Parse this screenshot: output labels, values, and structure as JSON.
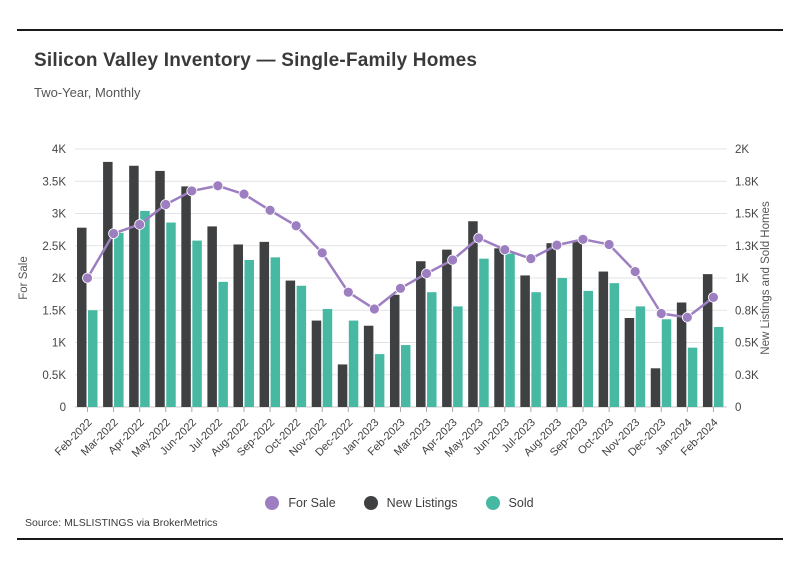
{
  "header": {
    "title": "Silicon Valley Inventory — Single-Family Homes",
    "subtitle": "Two-Year, Monthly"
  },
  "chart_data": {
    "type": "bar",
    "subtype": "grouped bars with overlaid line (dual axis)",
    "title": "Silicon Valley Inventory — Single-Family Homes",
    "subtitle": "Two-Year, Monthly",
    "categories": [
      "Feb-2022",
      "Mar-2022",
      "Apr-2022",
      "May-2022",
      "Jun-2022",
      "Jul-2022",
      "Aug-2022",
      "Sep-2022",
      "Oct-2022",
      "Nov-2022",
      "Dec-2022",
      "Jan-2023",
      "Feb-2023",
      "Mar-2023",
      "Apr-2023",
      "May-2023",
      "Jun-2023",
      "Jul-2023",
      "Aug-2023",
      "Sep-2023",
      "Oct-2023",
      "Nov-2023",
      "Dec-2023",
      "Jan-2024",
      "Feb-2024"
    ],
    "series": [
      {
        "name": "For Sale",
        "type": "line",
        "axis": "left",
        "color": "#9d7fc1",
        "values": [
          2000,
          2690,
          2830,
          3140,
          3350,
          3430,
          3300,
          3050,
          2810,
          2390,
          1780,
          1520,
          1840,
          2070,
          2280,
          2620,
          2440,
          2300,
          2510,
          2600,
          2520,
          2100,
          1450,
          1390,
          1700
        ]
      },
      {
        "name": "New Listings",
        "type": "bar",
        "axis": "right",
        "color": "#3e4042",
        "values": [
          1390,
          1900,
          1870,
          1830,
          1710,
          1400,
          1260,
          1280,
          980,
          670,
          330,
          630,
          870,
          1130,
          1220,
          1440,
          1230,
          1020,
          1270,
          1290,
          1050,
          690,
          300,
          810,
          1030
        ]
      },
      {
        "name": "Sold",
        "type": "bar",
        "axis": "right",
        "color": "#47b9a3",
        "values": [
          750,
          1350,
          1520,
          1430,
          1290,
          970,
          1140,
          1160,
          940,
          760,
          670,
          410,
          480,
          890,
          780,
          1150,
          1190,
          890,
          1000,
          900,
          960,
          780,
          680,
          460,
          620
        ]
      }
    ],
    "left_axis": {
      "title": "For Sale",
      "min": 0,
      "max": 4000,
      "tick_labels": [
        "0",
        "0.5K",
        "1K",
        "1.5K",
        "2K",
        "2.5K",
        "3K",
        "3.5K",
        "4K"
      ]
    },
    "right_axis": {
      "title": "New Listings and Sold Homes",
      "min": 0,
      "max": 2000,
      "tick_labels": [
        "0",
        "0.3K",
        "0.5K",
        "0.8K",
        "1K",
        "1.3K",
        "1.5K",
        "1.8K",
        "2K"
      ]
    },
    "grid": true,
    "legend_position": "bottom center",
    "colors": {
      "grid_line": "#e3e3e3",
      "axis_line": "#c9c9c9",
      "tick_text": "#454545",
      "axis_title_text": "#555555"
    }
  },
  "footer": {
    "source": "Source:  MLSLISTINGS via BrokerMetrics"
  }
}
